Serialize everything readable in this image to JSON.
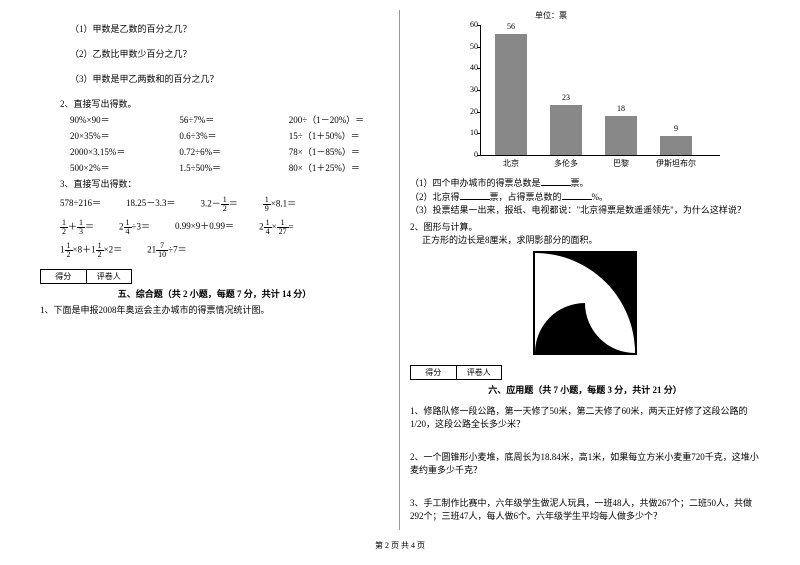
{
  "left": {
    "q1_1": "（1）甲数是乙数的百分之几？",
    "q1_2": "（2）乙数比甲数少百分之几？",
    "q1_3": "（3）甲数是甲乙两数和的百分之几？",
    "q2_title": "2、直接写出得数。",
    "q2_rows": [
      [
        "90%×90＝",
        "56÷7%＝",
        "200÷（1－20%）＝"
      ],
      [
        "20×35%＝",
        "0.6÷3%＝",
        "15÷（1＋50%）＝"
      ],
      [
        "2000×3.15%＝",
        "0.72÷6%＝",
        "78×（1－85%）＝"
      ],
      [
        "500×2%＝",
        "1.5÷50%＝",
        "80×（1＋25%）＝"
      ]
    ],
    "q3_title": "3、直接写出得数：",
    "score_labels": [
      "得分",
      "评卷人"
    ],
    "section5": "五、综合题（共 2 小题，每题 7 分，共计 14 分）",
    "section5_q1": "1、下面是申报2008年奥运会主办城市的得票情况统计图。"
  },
  "chart": {
    "unit": "单位：票",
    "ymax": 60,
    "ystep": 10,
    "bars": [
      {
        "label": "北京",
        "value": 56
      },
      {
        "label": "多伦多",
        "value": 23
      },
      {
        "label": "巴黎",
        "value": 18
      },
      {
        "label": "伊斯坦布尔",
        "value": 9
      }
    ],
    "bar_color": "#888888"
  },
  "right": {
    "c1": "（1）四个申办城市的得票总数是",
    "c1_suffix": "票。",
    "c2": "（2）北京得",
    "c2_mid": "票，占得票总数的",
    "c2_suffix": "%。",
    "c3": "（3）投票结果一出来，报纸、电视都说：\"北京得票是数遥遥领先\"，为什么这样说？",
    "q2_title": "2、图形与计算。",
    "q2_text": "正方形的边长是8厘米，求阴影部分的面积。",
    "score_labels": [
      "得分",
      "评卷人"
    ],
    "section6": "六、应用题（共 7 小题，每题 3 分，共计 21 分）",
    "app1": "1、修路队修一段公路，第一天修了50米，第二天修了60米，两天正好修了这段公路的1/20，这段公路全长多少米？",
    "app2": "2、一个圆锥形小麦堆，底周长为18.84米，高1米，如果每立方米小麦重720千克，这堆小麦约重多少千克？",
    "app3": "3、手工制作比赛中，六年级学生做泥人玩具，一班48人，共做267个；二班50人，共做292个；三班47人，每人做6个。六年级学生平均每人做多少个？"
  },
  "footer": "第 2 页 共 4 页"
}
